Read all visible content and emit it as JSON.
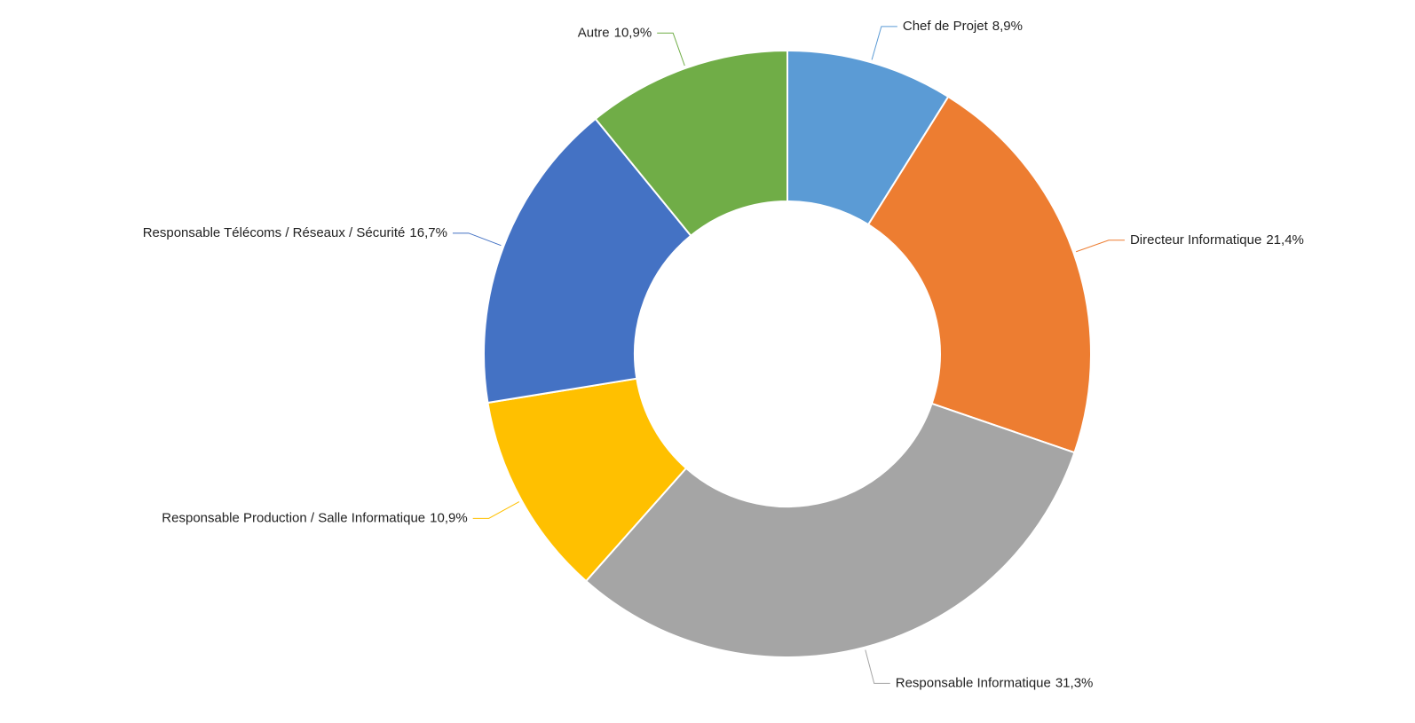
{
  "chart_data": {
    "type": "donut",
    "categories": [
      "Chef de Projet",
      "Directeur Informatique",
      "Responsable Informatique",
      "Responsable Production / Salle Informatique",
      "Responsable Télécoms / Réseaux / Sécurité",
      "Autre"
    ],
    "values": [
      8.9,
      21.4,
      31.3,
      10.9,
      16.7,
      10.9
    ],
    "value_labels": [
      "8,9%",
      "21,4%",
      "31,3%",
      "10,9%",
      "16,7%",
      "10,9%"
    ],
    "colors": [
      "#5b9bd5",
      "#ed7d31",
      "#a5a5a5",
      "#ffc000",
      "#4472c4",
      "#70ad47"
    ]
  }
}
